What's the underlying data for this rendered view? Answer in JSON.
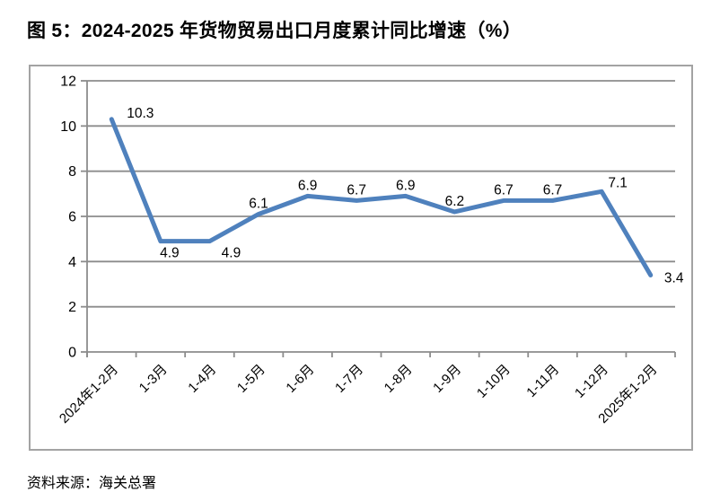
{
  "page": {
    "title": "图 5：2024-2025 年货物贸易出口月度累计同比增速（%）",
    "source_note": "资料来源：海关总署"
  },
  "chart_data": {
    "type": "line",
    "title": "图 5：2024-2025 年货物贸易出口月度累计同比增速（%）",
    "categories": [
      "2024年1-2月",
      "1-3月",
      "1-4月",
      "1-5月",
      "1-6月",
      "1-7月",
      "1-8月",
      "1-9月",
      "1-10月",
      "1-11月",
      "1-12月",
      "2025年1-2月"
    ],
    "values": [
      10.3,
      4.9,
      4.9,
      6.1,
      6.9,
      6.7,
      6.9,
      6.2,
      6.7,
      6.7,
      7.1,
      3.4
    ],
    "data_label_positions": [
      "right",
      "below",
      "below-right",
      "above",
      "above",
      "above",
      "above",
      "above",
      "above",
      "above",
      "above-right",
      "end-right"
    ],
    "xlabel": "",
    "ylabel": "",
    "ylim": [
      0,
      12
    ],
    "yticks": [
      0,
      2,
      4,
      6,
      8,
      10,
      12
    ],
    "x_tick_rotation_deg": -45,
    "grid": true,
    "legend": "none",
    "line_color": "#4F81BD",
    "grid_color": "#8C8C8C",
    "border_color": "#A3A3A3",
    "label_color": "#000000",
    "source_note": "资料来源：海关总署"
  }
}
